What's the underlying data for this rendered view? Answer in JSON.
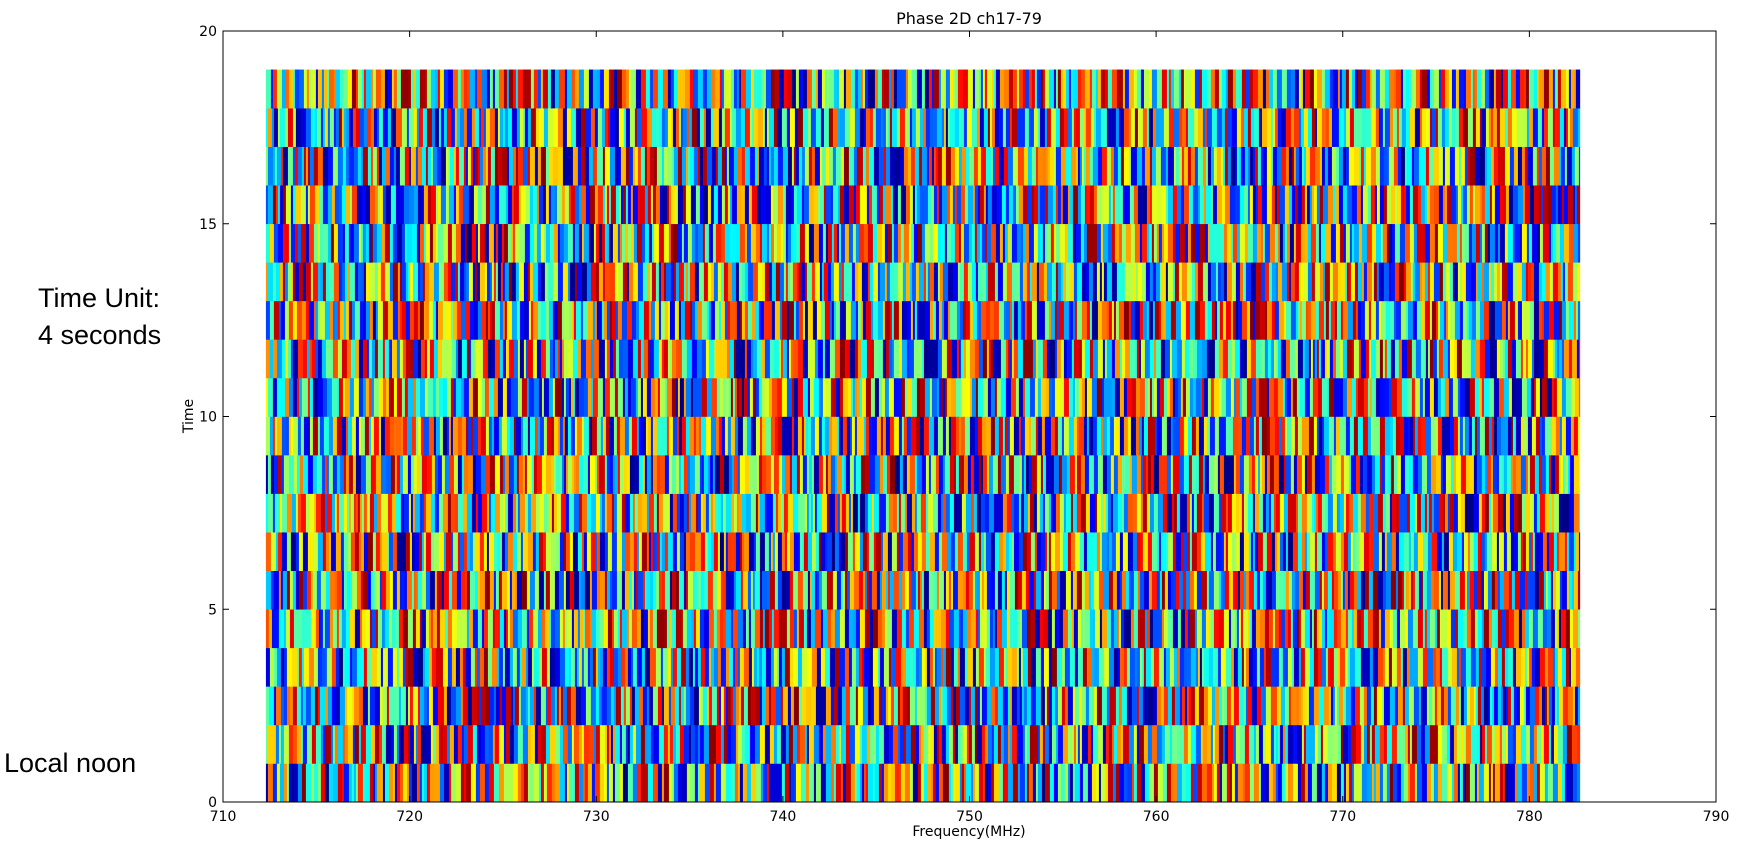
{
  "annotations": {
    "time_unit_line1": "Time Unit:",
    "time_unit_line2": "4 seconds",
    "local_noon": "Local noon"
  },
  "chart_data": {
    "type": "heatmap",
    "title": "Phase 2D ch17-79",
    "xlabel": "Frequency(MHz)",
    "ylabel": "Time",
    "xlim": [
      710,
      790
    ],
    "ylim": [
      0,
      20
    ],
    "x_ticks": [
      710,
      720,
      730,
      740,
      750,
      760,
      770,
      780,
      790
    ],
    "y_ticks": [
      0,
      5,
      10,
      15,
      20
    ],
    "x_tick_labels": [
      "710",
      "720",
      "730",
      "740",
      "750",
      "760",
      "770",
      "780",
      "790"
    ],
    "y_tick_labels": [
      "0",
      "5",
      "10",
      "15",
      "20"
    ],
    "data_extent": {
      "x": [
        712.3,
        782.7
      ],
      "y": [
        0,
        19
      ]
    },
    "time_rows": 19,
    "colormap": "jet",
    "grid": false
  }
}
